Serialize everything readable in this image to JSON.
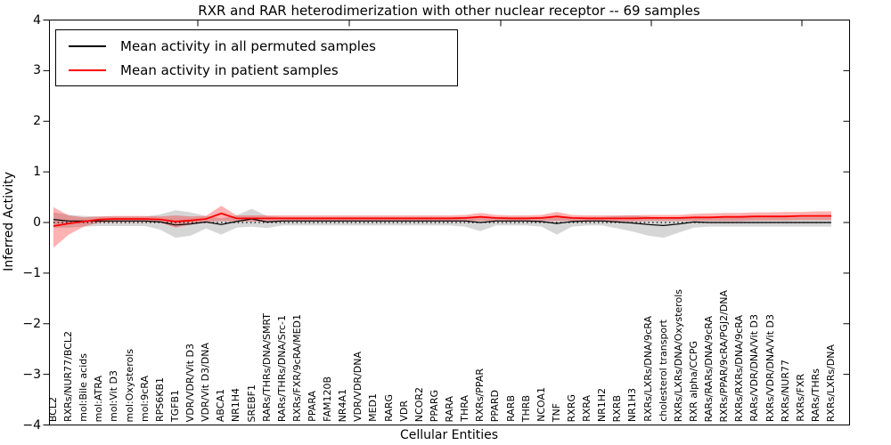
{
  "title": "RXR and RAR heterodimerization with other nuclear receptor -- 69 samples",
  "ylabel": "Inferred Activity",
  "xlabel": "Cellular Entities",
  "legend": [
    {
      "label": "Mean activity in all permuted samples",
      "color": "#000000"
    },
    {
      "label": "Mean activity in patient samples",
      "color": "#ff0000"
    }
  ],
  "yticks": [
    {
      "label": "4",
      "v": 4
    },
    {
      "label": "3",
      "v": 3
    },
    {
      "label": "2",
      "v": 2
    },
    {
      "label": "1",
      "v": 1
    },
    {
      "label": "0",
      "v": 0
    },
    {
      "label": "−1",
      "v": -1
    },
    {
      "label": "−2",
      "v": -2
    },
    {
      "label": "−3",
      "v": -3
    },
    {
      "label": "−4",
      "v": -4
    }
  ],
  "chart_data": {
    "type": "line",
    "title": "RXR and RAR heterodimerization with other nuclear receptor -- 69 samples",
    "xlabel": "Cellular Entities",
    "ylabel": "Inferred Activity",
    "ylim": [
      -4,
      4
    ],
    "grid": false,
    "legend_position": "upper left",
    "zero_line": {
      "style": "dotted",
      "color": "#000000",
      "y": 0
    },
    "categories": [
      "BCL2",
      "RXRs/NUR77/BCL2",
      "mol:Bile acids",
      "mol:ATRA",
      "mol:Vit D3",
      "mol:Oxysterols",
      "mol:9cRA",
      "RPS6KB1",
      "TGFB1",
      "VDR/VDR/Vit D3",
      "VDR/Vit D3/DNA",
      "ABCA1",
      "NR1H4",
      "SREBF1",
      "RARs/THRs/DNA/SMRT",
      "RARs/THRs/DNA/Src-1",
      "RXRs/FXR/9cRA/MED1",
      "PPARA",
      "FAM120B",
      "NR4A1",
      "VDR/VDR/DNA",
      "MED1",
      "RARG",
      "VDR",
      "NCOR2",
      "PPARG",
      "RARA",
      "THRA",
      "RXRs/PPAR",
      "PPARD",
      "RARB",
      "THRB",
      "NCOA1",
      "TNF",
      "RXRG",
      "RXRA",
      "NR1H2",
      "RXRB",
      "NR1H3",
      "RXRs/LXRs/DNA/9cRA",
      "cholesterol transport",
      "RXRs/LXRs/DNA/Oxysterols",
      "RXR alpha/CCPG",
      "RARs/RARs/DNA/9cRA",
      "RXRs/PPAR/9cRA/PGJ2/DNA",
      "RXRs/RXRs/DNA/9cRA",
      "RARs/VDR/DNA/Vit D3",
      "RXRs/VDR/DNA/Vit D3",
      "RXRs/NUR77",
      "RXRs/FXR",
      "RARs/THRs",
      "RXRs/LXRs/DNA"
    ],
    "series": [
      {
        "name": "Mean activity in all permuted samples",
        "color": "#000000",
        "band_color": "#000000",
        "band_opacity": 0.16,
        "values": [
          0.06,
          0.03,
          0.03,
          0.03,
          0.03,
          0.03,
          0.03,
          0.01,
          -0.05,
          -0.03,
          0.01,
          -0.04,
          0.02,
          0.07,
          0.01,
          0.03,
          0.03,
          0.03,
          0.03,
          0.03,
          0.03,
          0.03,
          0.03,
          0.03,
          0.03,
          0.03,
          0.03,
          0.03,
          0.0,
          0.03,
          0.03,
          0.03,
          0.02,
          -0.02,
          0.02,
          0.03,
          0.03,
          0.01,
          -0.01,
          -0.04,
          -0.06,
          -0.03,
          0.01,
          0.0,
          0.0,
          0.0,
          0.0,
          0.0,
          0.0,
          0.0,
          0.0,
          0.0
        ],
        "band_hi": [
          0.2,
          0.15,
          0.13,
          0.12,
          0.12,
          0.12,
          0.12,
          0.16,
          0.24,
          0.2,
          0.13,
          0.08,
          0.14,
          0.27,
          0.13,
          0.11,
          0.11,
          0.11,
          0.11,
          0.11,
          0.11,
          0.11,
          0.11,
          0.11,
          0.11,
          0.11,
          0.11,
          0.11,
          0.08,
          0.11,
          0.11,
          0.11,
          0.11,
          0.09,
          0.11,
          0.11,
          0.11,
          0.13,
          0.14,
          0.12,
          0.07,
          0.08,
          0.12,
          0.1,
          0.1,
          0.1,
          0.1,
          0.1,
          0.1,
          0.1,
          0.1,
          0.1
        ],
        "band_lo": [
          -0.1,
          -0.1,
          -0.08,
          -0.07,
          -0.07,
          -0.07,
          -0.07,
          -0.14,
          -0.3,
          -0.26,
          -0.12,
          -0.24,
          -0.1,
          -0.08,
          -0.11,
          -0.06,
          -0.06,
          -0.06,
          -0.06,
          -0.06,
          -0.06,
          -0.06,
          -0.06,
          -0.06,
          -0.06,
          -0.06,
          -0.06,
          -0.08,
          -0.17,
          -0.06,
          -0.06,
          -0.06,
          -0.08,
          -0.24,
          -0.08,
          -0.06,
          -0.06,
          -0.12,
          -0.18,
          -0.26,
          -0.3,
          -0.2,
          -0.1,
          -0.08,
          -0.08,
          -0.08,
          -0.08,
          -0.08,
          -0.08,
          -0.08,
          -0.08,
          -0.08
        ]
      },
      {
        "name": "Mean activity in patient samples",
        "color": "#ff0000",
        "band_color": "#ff0000",
        "band_opacity": 0.3,
        "values": [
          -0.07,
          -0.02,
          0.02,
          0.06,
          0.07,
          0.07,
          0.07,
          0.06,
          0.02,
          0.04,
          0.07,
          0.18,
          0.08,
          0.08,
          0.08,
          0.08,
          0.08,
          0.08,
          0.08,
          0.08,
          0.08,
          0.08,
          0.08,
          0.08,
          0.08,
          0.08,
          0.08,
          0.09,
          0.11,
          0.09,
          0.08,
          0.08,
          0.09,
          0.12,
          0.09,
          0.08,
          0.08,
          0.08,
          0.08,
          0.09,
          0.09,
          0.09,
          0.1,
          0.1,
          0.11,
          0.11,
          0.12,
          0.12,
          0.12,
          0.13,
          0.13,
          0.13
        ],
        "band_hi": [
          0.3,
          0.14,
          0.1,
          0.12,
          0.13,
          0.13,
          0.13,
          0.12,
          0.14,
          0.12,
          0.13,
          0.33,
          0.14,
          0.14,
          0.14,
          0.14,
          0.14,
          0.14,
          0.14,
          0.14,
          0.14,
          0.14,
          0.14,
          0.14,
          0.14,
          0.14,
          0.14,
          0.15,
          0.19,
          0.15,
          0.14,
          0.14,
          0.15,
          0.21,
          0.15,
          0.14,
          0.14,
          0.14,
          0.14,
          0.15,
          0.15,
          0.15,
          0.17,
          0.18,
          0.19,
          0.19,
          0.2,
          0.2,
          0.21,
          0.21,
          0.22,
          0.22
        ],
        "band_lo": [
          -0.5,
          -0.24,
          -0.08,
          0.0,
          0.01,
          0.01,
          0.01,
          0.0,
          -0.1,
          -0.04,
          0.01,
          0.03,
          0.02,
          0.02,
          0.02,
          0.02,
          0.02,
          0.02,
          0.02,
          0.02,
          0.02,
          0.02,
          0.02,
          0.02,
          0.02,
          0.02,
          0.02,
          0.03,
          0.03,
          0.03,
          0.02,
          0.02,
          0.03,
          0.03,
          0.03,
          0.02,
          0.02,
          0.02,
          0.02,
          0.03,
          0.03,
          0.03,
          0.03,
          0.03,
          0.03,
          0.03,
          0.04,
          0.04,
          0.04,
          0.05,
          0.05,
          0.05
        ]
      }
    ]
  }
}
